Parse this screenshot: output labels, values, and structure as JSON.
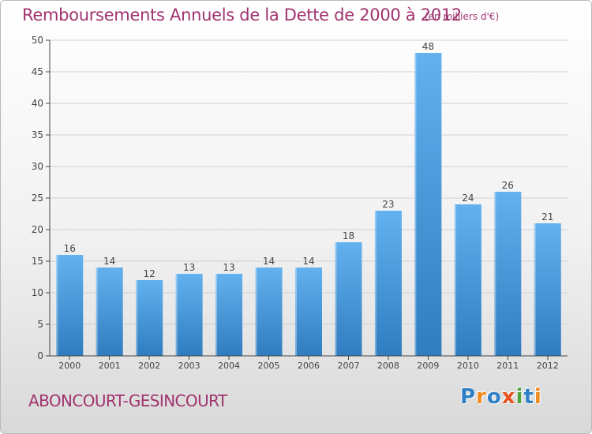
{
  "header": {
    "title": "Remboursements Annuels de la Dette de 2000 à 2012",
    "unit": "(en milliers d'€)"
  },
  "footer": {
    "commune": "ABONCOURT-GESINCOURT",
    "brand": "Proxiti",
    "brand_letters": [
      {
        "ch": "P",
        "color": "#2f7fc5"
      },
      {
        "ch": "r",
        "color": "#f08a1c"
      },
      {
        "ch": "o",
        "color": "#2f7fc5"
      },
      {
        "ch": "x",
        "color": "#e8521f"
      },
      {
        "ch": "i",
        "color": "#4da33c"
      },
      {
        "ch": "t",
        "color": "#2f7fc5"
      },
      {
        "ch": "i",
        "color": "#f08a1c"
      }
    ]
  },
  "colors": {
    "bar_light": "#63b1ee",
    "bar_dark": "#2f7dc0",
    "title": "#a0336e",
    "axis": "#444444",
    "grid": "#d0d0d0"
  },
  "chart_data": {
    "type": "bar",
    "title": "Remboursements Annuels de la Dette de 2000 à 2012",
    "subtitle": "(en milliers d'€)",
    "xlabel": "",
    "ylabel": "",
    "categories": [
      "2000",
      "2001",
      "2002",
      "2003",
      "2004",
      "2005",
      "2006",
      "2007",
      "2008",
      "2009",
      "2010",
      "2011",
      "2012"
    ],
    "values": [
      16,
      14,
      12,
      13,
      13,
      14,
      14,
      18,
      23,
      48,
      24,
      26,
      21
    ],
    "ylim": [
      0,
      50
    ],
    "yticks": [
      0,
      5,
      10,
      15,
      20,
      25,
      30,
      35,
      40,
      45,
      50
    ],
    "grid": true,
    "data_labels": true
  }
}
